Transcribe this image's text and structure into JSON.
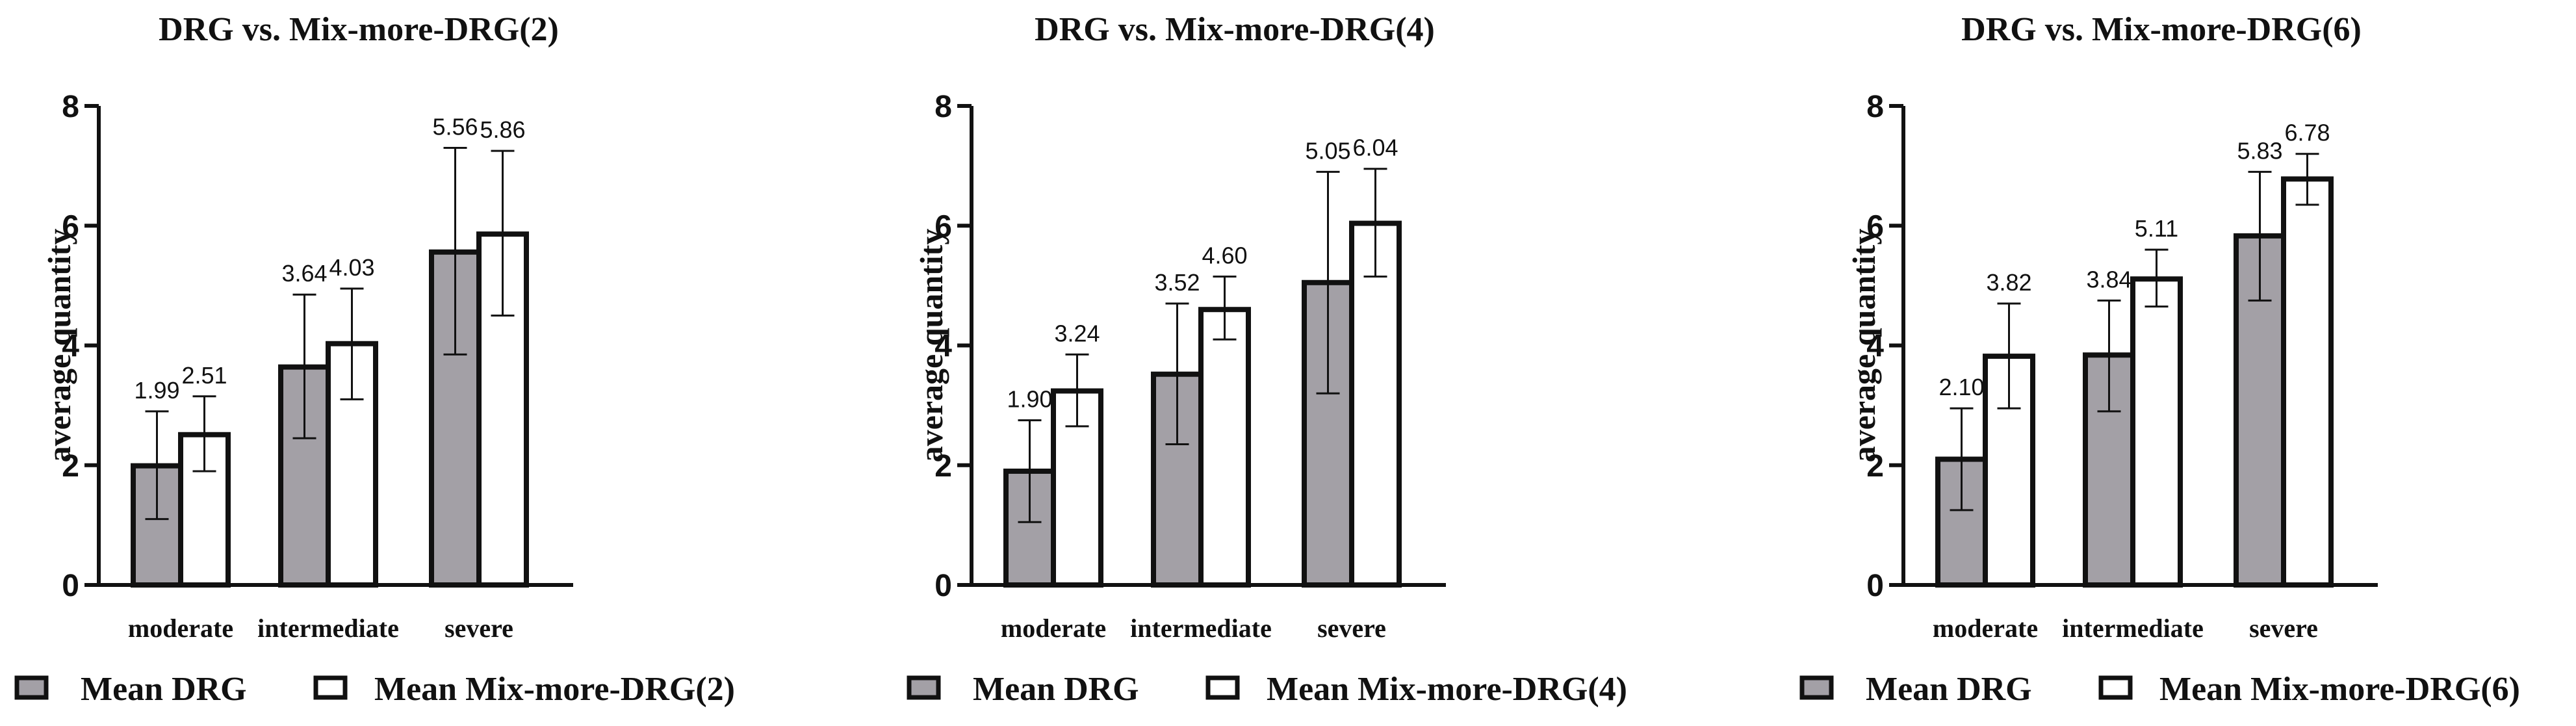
{
  "colors": {
    "drg": "#a3a0a6",
    "mix": "#ffffff",
    "stroke": "#111111"
  },
  "chart_data": [
    {
      "type": "bar",
      "title": "DRG vs. Mix-more-DRG(2)",
      "xlabel": "",
      "ylabel": "average quantity",
      "ylim": [
        0,
        8
      ],
      "yticks": [
        "0",
        "2",
        "4",
        "6",
        "8"
      ],
      "categories": [
        "moderate",
        "intermediate",
        "severe"
      ],
      "series": [
        {
          "name": "Mean DRG",
          "values": [
            1.99,
            3.64,
            5.56
          ],
          "labels": [
            "1.99",
            "3.64",
            "5.56"
          ],
          "err_low": [
            1.1,
            2.45,
            3.85
          ],
          "err_high": [
            2.9,
            4.85,
            7.3
          ]
        },
        {
          "name": "Mean Mix-more-DRG(2)",
          "values": [
            2.51,
            4.03,
            5.86
          ],
          "labels": [
            "2.51",
            "4.03",
            "5.86"
          ],
          "err_low": [
            1.9,
            3.1,
            4.5
          ],
          "err_high": [
            3.15,
            4.95,
            7.25
          ]
        }
      ]
    },
    {
      "type": "bar",
      "title": "DRG vs. Mix-more-DRG(4)",
      "xlabel": "",
      "ylabel": "average quantity",
      "ylim": [
        0,
        8
      ],
      "yticks": [
        "0",
        "2",
        "4",
        "6",
        "8"
      ],
      "categories": [
        "moderate",
        "intermediate",
        "severe"
      ],
      "series": [
        {
          "name": "Mean DRG",
          "values": [
            1.9,
            3.52,
            5.05
          ],
          "labels": [
            "1.90",
            "3.52",
            "5.05"
          ],
          "err_low": [
            1.05,
            2.35,
            3.2
          ],
          "err_high": [
            2.75,
            4.7,
            6.9
          ]
        },
        {
          "name": "Mean Mix-more-DRG(4)",
          "values": [
            3.24,
            4.6,
            6.04
          ],
          "labels": [
            "3.24",
            "4.60",
            "6.04"
          ],
          "err_low": [
            2.65,
            4.1,
            5.15
          ],
          "err_high": [
            3.85,
            5.15,
            6.95
          ]
        }
      ]
    },
    {
      "type": "bar",
      "title": "DRG vs. Mix-more-DRG(6)",
      "xlabel": "",
      "ylabel": "average quantity",
      "ylim": [
        0,
        8
      ],
      "yticks": [
        "0",
        "2",
        "4",
        "6",
        "8"
      ],
      "categories": [
        "moderate",
        "intermediate",
        "severe"
      ],
      "series": [
        {
          "name": "Mean DRG",
          "values": [
            2.1,
            3.84,
            5.83
          ],
          "labels": [
            "2.10",
            "3.84",
            "5.83"
          ],
          "err_low": [
            1.25,
            2.9,
            4.75
          ],
          "err_high": [
            2.95,
            4.75,
            6.9
          ]
        },
        {
          "name": "Mean Mix-more-DRG(6)",
          "values": [
            3.82,
            5.11,
            6.78
          ],
          "labels": [
            "3.82",
            "5.11",
            "6.78"
          ],
          "err_low": [
            2.95,
            4.65,
            6.35
          ],
          "err_high": [
            4.7,
            5.6,
            7.2
          ]
        }
      ]
    }
  ]
}
